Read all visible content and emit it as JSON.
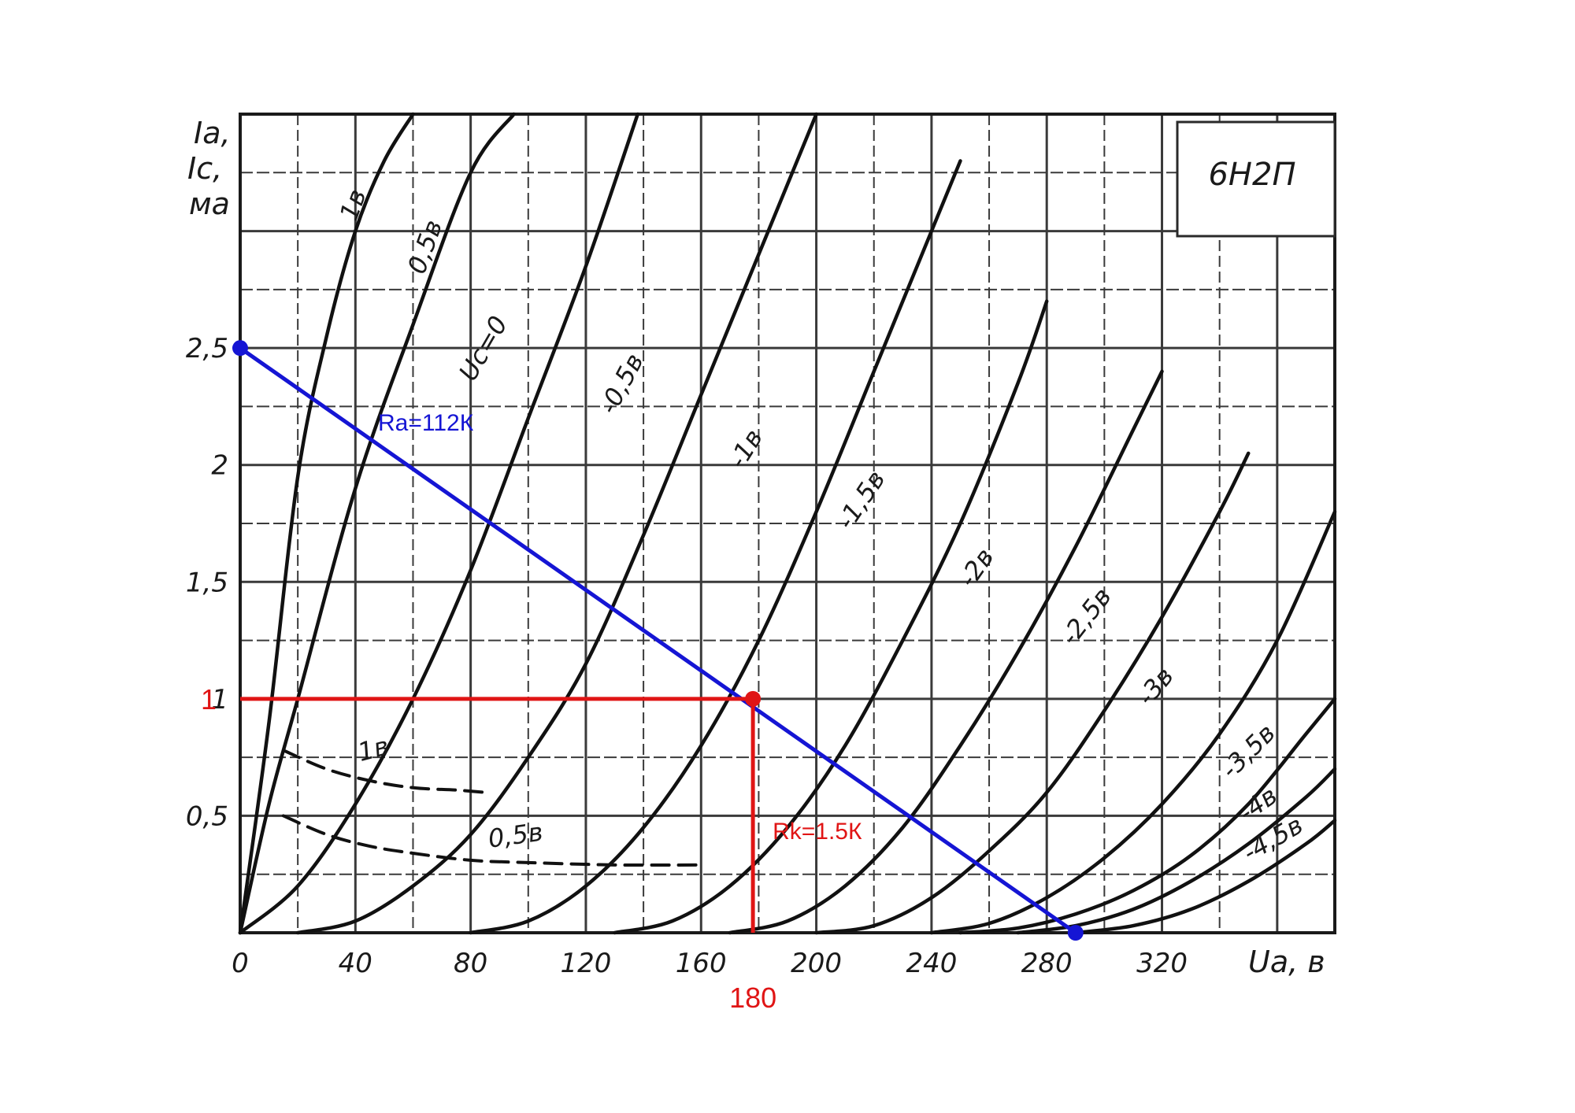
{
  "chart_data": {
    "type": "line",
    "title": "6Н2П",
    "xlabel": "Uа, в",
    "ylabel_lines": [
      "Iа,",
      "Iс,",
      "ма"
    ],
    "xlim": [
      0,
      380
    ],
    "ylim": [
      0,
      3.5
    ],
    "x_ticks": [
      0,
      40,
      80,
      120,
      160,
      200,
      240,
      280,
      320
    ],
    "y_ticks": [
      {
        "value": 0.5,
        "label": "0,5"
      },
      {
        "value": 1,
        "label": "1"
      },
      {
        "value": 1.5,
        "label": "1,5"
      },
      {
        "value": 2,
        "label": "2"
      },
      {
        "value": 2.5,
        "label": "2,5"
      }
    ],
    "grid": true,
    "series": [
      {
        "name": "1в",
        "style": "solid",
        "x": [
          0,
          10,
          20,
          30,
          40,
          50,
          60
        ],
        "y": [
          0,
          0.9,
          1.95,
          2.55,
          3.0,
          3.3,
          3.5
        ]
      },
      {
        "name": "0,5в",
        "style": "solid",
        "x": [
          0,
          10,
          20,
          40,
          60,
          80,
          95
        ],
        "y": [
          0,
          0.55,
          1.0,
          1.9,
          2.6,
          3.25,
          3.5
        ]
      },
      {
        "name": "Uс=0",
        "style": "solid",
        "x": [
          0,
          20,
          40,
          60,
          80,
          100,
          120,
          138
        ],
        "y": [
          0,
          0.2,
          0.55,
          1.0,
          1.55,
          2.2,
          2.85,
          3.5
        ]
      },
      {
        "name": "-0,5в",
        "style": "solid",
        "x": [
          20,
          40,
          60,
          80,
          100,
          120,
          140,
          160,
          180,
          200
        ],
        "y": [
          0,
          0.05,
          0.2,
          0.42,
          0.75,
          1.15,
          1.7,
          2.3,
          2.9,
          3.5
        ]
      },
      {
        "name": "-1в",
        "style": "solid",
        "x": [
          80,
          100,
          120,
          140,
          160,
          180,
          200,
          220,
          240,
          250
        ],
        "y": [
          0,
          0.05,
          0.2,
          0.45,
          0.8,
          1.25,
          1.8,
          2.4,
          3.0,
          3.3
        ]
      },
      {
        "name": "-1,5в",
        "style": "solid",
        "x": [
          130,
          150,
          170,
          190,
          210,
          230,
          250,
          270,
          280
        ],
        "y": [
          0,
          0.05,
          0.2,
          0.45,
          0.8,
          1.25,
          1.75,
          2.35,
          2.7
        ]
      },
      {
        "name": "-2в",
        "style": "solid",
        "x": [
          170,
          190,
          210,
          230,
          250,
          270,
          290,
          310,
          320
        ],
        "y": [
          0,
          0.05,
          0.2,
          0.45,
          0.8,
          1.2,
          1.65,
          2.15,
          2.4
        ]
      },
      {
        "name": "-2,5в",
        "style": "solid",
        "x": [
          200,
          220,
          240,
          260,
          280,
          300,
          320,
          340,
          350
        ],
        "y": [
          0,
          0.03,
          0.15,
          0.35,
          0.6,
          0.95,
          1.35,
          1.8,
          2.05
        ]
      },
      {
        "name": "-3в",
        "style": "solid",
        "x": [
          240,
          260,
          280,
          300,
          320,
          340,
          360,
          380
        ],
        "y": [
          0,
          0.04,
          0.15,
          0.32,
          0.55,
          0.85,
          1.25,
          1.8
        ]
      },
      {
        "name": "-3,5в",
        "style": "solid",
        "x": [
          250,
          270,
          290,
          310,
          330,
          350,
          370,
          380
        ],
        "y": [
          0,
          0.02,
          0.08,
          0.18,
          0.33,
          0.55,
          0.85,
          1.0
        ]
      },
      {
        "name": "-4в",
        "style": "solid",
        "x": [
          270,
          290,
          310,
          330,
          350,
          370,
          380
        ],
        "y": [
          0,
          0.03,
          0.1,
          0.22,
          0.38,
          0.58,
          0.7
        ]
      },
      {
        "name": "-4,5в",
        "style": "solid",
        "x": [
          290,
          310,
          330,
          350,
          370,
          380
        ],
        "y": [
          0,
          0.03,
          0.1,
          0.22,
          0.38,
          0.48
        ]
      },
      {
        "name": "1в",
        "style": "dashed",
        "x": [
          15,
          30,
          45,
          60,
          75,
          85
        ],
        "y": [
          0.78,
          0.7,
          0.65,
          0.62,
          0.61,
          0.6
        ]
      },
      {
        "name": "0,5в",
        "style": "dashed",
        "x": [
          15,
          30,
          45,
          60,
          80,
          100,
          130,
          160
        ],
        "y": [
          0.5,
          0.42,
          0.37,
          0.34,
          0.31,
          0.3,
          0.29,
          0.29
        ]
      }
    ],
    "series_labels": [
      {
        "text": "1в",
        "x": 42,
        "y": 3.1,
        "angle": -70
      },
      {
        "text": "0,5в",
        "x": 67,
        "y": 2.92,
        "angle": -70
      },
      {
        "text": "Uс=0",
        "x": 87,
        "y": 2.48,
        "angle": -60
      },
      {
        "text": "-0,5в",
        "x": 135,
        "y": 2.33,
        "angle": -62
      },
      {
        "text": "-1в",
        "x": 178,
        "y": 2.05,
        "angle": -58
      },
      {
        "text": "-1,5в",
        "x": 218,
        "y": 1.83,
        "angle": -56
      },
      {
        "text": "-2в",
        "x": 258,
        "y": 1.54,
        "angle": -55
      },
      {
        "text": "-2,5в",
        "x": 296,
        "y": 1.33,
        "angle": -52
      },
      {
        "text": "-3в",
        "x": 320,
        "y": 1.03,
        "angle": -50
      },
      {
        "text": "-3,5в",
        "x": 352,
        "y": 0.75,
        "angle": -45
      },
      {
        "text": "-4в",
        "x": 355,
        "y": 0.52,
        "angle": -35
      },
      {
        "text": "-4,5в",
        "x": 360,
        "y": 0.37,
        "angle": -30
      },
      {
        "text": "1в",
        "x": 47,
        "y": 0.75,
        "angle": -15
      },
      {
        "text": "0,5в",
        "x": 96,
        "y": 0.38,
        "angle": -8
      }
    ],
    "load_line": {
      "label": "Ra=112К",
      "color": "#1515d4",
      "x": [
        0,
        290
      ],
      "y": [
        2.5,
        0
      ]
    },
    "operating_point": {
      "x": 178,
      "y": 1,
      "color": "#e01515"
    },
    "annotations": {
      "current_label": "1",
      "voltage_label": "180",
      "cathode_label": "Rk=1.5К"
    }
  }
}
